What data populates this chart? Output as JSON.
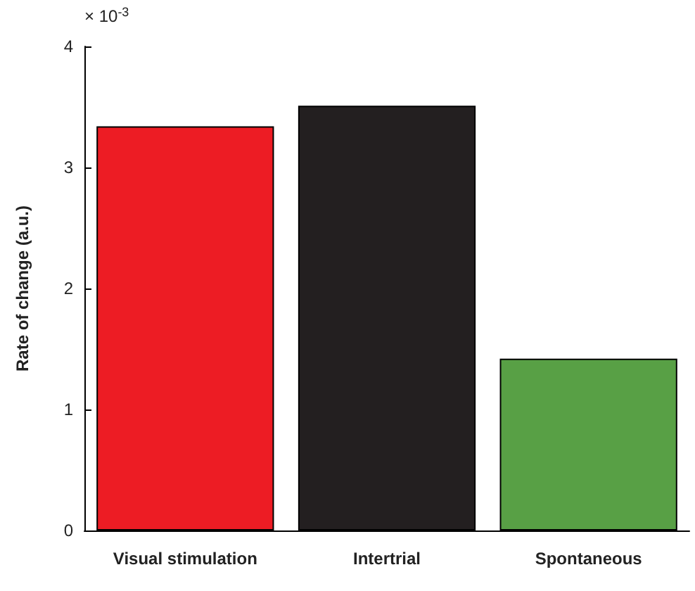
{
  "chart_data": {
    "type": "bar",
    "ylabel": "Rate of change (a.u.)",
    "annotations": [
      "× 10$^{-3}$"
    ],
    "categories": [
      "Visual stimulation",
      "Intertrial",
      "Spontaneous"
    ],
    "values": [
      3.34,
      3.51,
      1.42
    ],
    "colors": [
      "#ed1c24",
      "#231f20",
      "#58a045"
    ],
    "ylim": [
      0,
      4
    ],
    "yticks": [
      0,
      1,
      2,
      3,
      4
    ],
    "grid": false
  }
}
